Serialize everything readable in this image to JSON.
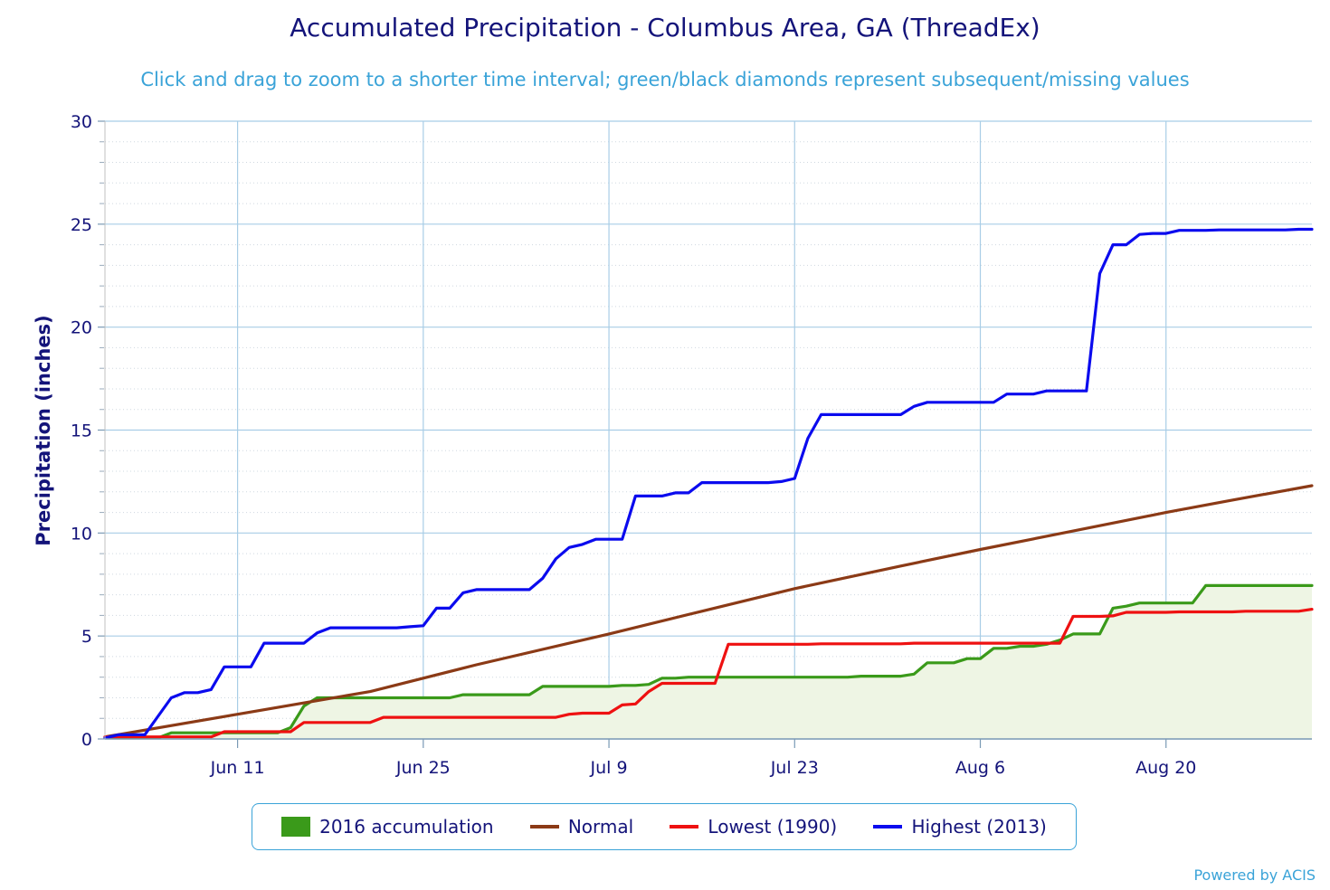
{
  "title": "Accumulated Precipitation - Columbus Area, GA (ThreadEx)",
  "subtitle": "Click and drag to zoom to a shorter time interval; green/black diamonds represent subsequent/missing values",
  "credit": "Powered by ACIS",
  "chart_data": {
    "type": "line",
    "title": "Accumulated Precipitation - Columbus Area, GA (ThreadEx)",
    "xlabel": "",
    "ylabel": "Precipitation (inches)",
    "x_start": "Jun 1",
    "x_end": "Aug 31",
    "xlim_days": [
      0,
      91
    ],
    "ylim": [
      0,
      30
    ],
    "yticks": [
      0,
      5,
      10,
      15,
      20,
      25,
      30
    ],
    "xticks": [
      {
        "label": "Jun 11",
        "day": 10
      },
      {
        "label": "Jun 25",
        "day": 24
      },
      {
        "label": "Jul 9",
        "day": 38
      },
      {
        "label": "Jul 23",
        "day": 52
      },
      {
        "label": "Aug 6",
        "day": 66
      },
      {
        "label": "Aug 20",
        "day": 80
      }
    ],
    "grid": true,
    "legend_position": "bottom-center",
    "series": [
      {
        "name": "2016 accumulation",
        "type": "area",
        "color": "#3a9a1a",
        "fill": "#eef5e4",
        "points": [
          [
            0,
            0.05
          ],
          [
            1,
            0.05
          ],
          [
            2,
            0.05
          ],
          [
            3,
            0.05
          ],
          [
            4,
            0.05
          ],
          [
            5,
            0.3
          ],
          [
            6,
            0.3
          ],
          [
            7,
            0.3
          ],
          [
            8,
            0.3
          ],
          [
            9,
            0.3
          ],
          [
            10,
            0.3
          ],
          [
            11,
            0.3
          ],
          [
            12,
            0.3
          ],
          [
            13,
            0.3
          ],
          [
            14,
            0.55
          ],
          [
            15,
            1.6
          ],
          [
            16,
            2.0
          ],
          [
            17,
            2.0
          ],
          [
            18,
            2.0
          ],
          [
            19,
            2.0
          ],
          [
            20,
            2.0
          ],
          [
            21,
            2.0
          ],
          [
            22,
            2.0
          ],
          [
            23,
            2.0
          ],
          [
            24,
            2.0
          ],
          [
            25,
            2.0
          ],
          [
            26,
            2.0
          ],
          [
            27,
            2.15
          ],
          [
            28,
            2.15
          ],
          [
            29,
            2.15
          ],
          [
            30,
            2.15
          ],
          [
            31,
            2.15
          ],
          [
            32,
            2.15
          ],
          [
            33,
            2.55
          ],
          [
            34,
            2.55
          ],
          [
            35,
            2.55
          ],
          [
            36,
            2.55
          ],
          [
            37,
            2.55
          ],
          [
            38,
            2.55
          ],
          [
            39,
            2.6
          ],
          [
            40,
            2.6
          ],
          [
            41,
            2.65
          ],
          [
            42,
            2.95
          ],
          [
            43,
            2.95
          ],
          [
            44,
            3.0
          ],
          [
            45,
            3.0
          ],
          [
            46,
            3.0
          ],
          [
            47,
            3.0
          ],
          [
            48,
            3.0
          ],
          [
            49,
            3.0
          ],
          [
            50,
            3.0
          ],
          [
            51,
            3.0
          ],
          [
            52,
            3.0
          ],
          [
            53,
            3.0
          ],
          [
            54,
            3.0
          ],
          [
            55,
            3.0
          ],
          [
            56,
            3.0
          ],
          [
            57,
            3.05
          ],
          [
            58,
            3.05
          ],
          [
            59,
            3.05
          ],
          [
            60,
            3.05
          ],
          [
            61,
            3.15
          ],
          [
            62,
            3.7
          ],
          [
            63,
            3.7
          ],
          [
            64,
            3.7
          ],
          [
            65,
            3.9
          ],
          [
            66,
            3.9
          ],
          [
            67,
            4.4
          ],
          [
            68,
            4.4
          ],
          [
            69,
            4.5
          ],
          [
            70,
            4.5
          ],
          [
            71,
            4.6
          ],
          [
            72,
            4.8
          ],
          [
            73,
            5.1
          ],
          [
            74,
            5.1
          ],
          [
            75,
            5.1
          ],
          [
            76,
            6.35
          ],
          [
            77,
            6.45
          ],
          [
            78,
            6.6
          ],
          [
            79,
            6.6
          ],
          [
            80,
            6.6
          ],
          [
            81,
            6.6
          ],
          [
            82,
            6.6
          ],
          [
            83,
            7.45
          ],
          [
            84,
            7.45
          ],
          [
            85,
            7.45
          ],
          [
            86,
            7.45
          ],
          [
            87,
            7.45
          ],
          [
            88,
            7.45
          ],
          [
            89,
            7.45
          ],
          [
            90,
            7.45
          ],
          [
            91,
            7.45
          ]
        ]
      },
      {
        "name": "Normal",
        "type": "line",
        "color": "#8b3a16",
        "points": [
          [
            0,
            0.1
          ],
          [
            10,
            1.2
          ],
          [
            20,
            2.3
          ],
          [
            28,
            3.6
          ],
          [
            38,
            5.1
          ],
          [
            45,
            6.2
          ],
          [
            52,
            7.3
          ],
          [
            60,
            8.4
          ],
          [
            66,
            9.2
          ],
          [
            73,
            10.1
          ],
          [
            80,
            11.0
          ],
          [
            85,
            11.6
          ],
          [
            91,
            12.3
          ]
        ]
      },
      {
        "name": "Lowest (1990)",
        "type": "line",
        "color": "#ee1111",
        "points": [
          [
            0,
            0.1
          ],
          [
            1,
            0.1
          ],
          [
            2,
            0.1
          ],
          [
            3,
            0.1
          ],
          [
            4,
            0.1
          ],
          [
            5,
            0.1
          ],
          [
            6,
            0.1
          ],
          [
            7,
            0.1
          ],
          [
            8,
            0.1
          ],
          [
            9,
            0.35
          ],
          [
            10,
            0.35
          ],
          [
            11,
            0.35
          ],
          [
            12,
            0.35
          ],
          [
            13,
            0.35
          ],
          [
            14,
            0.35
          ],
          [
            15,
            0.8
          ],
          [
            16,
            0.8
          ],
          [
            17,
            0.8
          ],
          [
            18,
            0.8
          ],
          [
            19,
            0.8
          ],
          [
            20,
            0.8
          ],
          [
            21,
            1.05
          ],
          [
            22,
            1.05
          ],
          [
            23,
            1.05
          ],
          [
            24,
            1.05
          ],
          [
            25,
            1.05
          ],
          [
            26,
            1.05
          ],
          [
            27,
            1.05
          ],
          [
            28,
            1.05
          ],
          [
            29,
            1.05
          ],
          [
            30,
            1.05
          ],
          [
            31,
            1.05
          ],
          [
            32,
            1.05
          ],
          [
            33,
            1.05
          ],
          [
            34,
            1.05
          ],
          [
            35,
            1.2
          ],
          [
            36,
            1.25
          ],
          [
            37,
            1.25
          ],
          [
            38,
            1.25
          ],
          [
            39,
            1.65
          ],
          [
            40,
            1.7
          ],
          [
            41,
            2.3
          ],
          [
            42,
            2.7
          ],
          [
            43,
            2.7
          ],
          [
            44,
            2.7
          ],
          [
            45,
            2.7
          ],
          [
            46,
            2.7
          ],
          [
            47,
            4.6
          ],
          [
            48,
            4.6
          ],
          [
            49,
            4.6
          ],
          [
            50,
            4.6
          ],
          [
            51,
            4.6
          ],
          [
            52,
            4.6
          ],
          [
            53,
            4.6
          ],
          [
            54,
            4.62
          ],
          [
            55,
            4.62
          ],
          [
            56,
            4.62
          ],
          [
            57,
            4.62
          ],
          [
            58,
            4.62
          ],
          [
            59,
            4.62
          ],
          [
            60,
            4.62
          ],
          [
            61,
            4.65
          ],
          [
            62,
            4.65
          ],
          [
            63,
            4.65
          ],
          [
            64,
            4.65
          ],
          [
            65,
            4.65
          ],
          [
            66,
            4.65
          ],
          [
            67,
            4.65
          ],
          [
            68,
            4.65
          ],
          [
            69,
            4.65
          ],
          [
            70,
            4.65
          ],
          [
            71,
            4.65
          ],
          [
            72,
            4.65
          ],
          [
            73,
            5.95
          ],
          [
            74,
            5.95
          ],
          [
            75,
            5.95
          ],
          [
            76,
            5.98
          ],
          [
            77,
            6.15
          ],
          [
            78,
            6.15
          ],
          [
            79,
            6.15
          ],
          [
            80,
            6.15
          ],
          [
            81,
            6.17
          ],
          [
            82,
            6.17
          ],
          [
            83,
            6.17
          ],
          [
            84,
            6.17
          ],
          [
            85,
            6.17
          ],
          [
            86,
            6.2
          ],
          [
            87,
            6.2
          ],
          [
            88,
            6.2
          ],
          [
            89,
            6.2
          ],
          [
            90,
            6.2
          ],
          [
            91,
            6.3
          ]
        ]
      },
      {
        "name": "Highest (2013)",
        "type": "line",
        "color": "#0b0bee",
        "points": [
          [
            0,
            0.05
          ],
          [
            1,
            0.2
          ],
          [
            2,
            0.2
          ],
          [
            3,
            0.2
          ],
          [
            4,
            1.1
          ],
          [
            5,
            2.0
          ],
          [
            6,
            2.25
          ],
          [
            7,
            2.25
          ],
          [
            8,
            2.4
          ],
          [
            9,
            3.5
          ],
          [
            10,
            3.5
          ],
          [
            11,
            3.5
          ],
          [
            12,
            4.65
          ],
          [
            13,
            4.65
          ],
          [
            14,
            4.65
          ],
          [
            15,
            4.65
          ],
          [
            16,
            5.15
          ],
          [
            17,
            5.4
          ],
          [
            18,
            5.4
          ],
          [
            19,
            5.4
          ],
          [
            20,
            5.4
          ],
          [
            21,
            5.4
          ],
          [
            22,
            5.4
          ],
          [
            23,
            5.45
          ],
          [
            24,
            5.5
          ],
          [
            25,
            6.35
          ],
          [
            26,
            6.35
          ],
          [
            27,
            7.1
          ],
          [
            28,
            7.25
          ],
          [
            29,
            7.25
          ],
          [
            30,
            7.25
          ],
          [
            31,
            7.25
          ],
          [
            32,
            7.25
          ],
          [
            33,
            7.8
          ],
          [
            34,
            8.75
          ],
          [
            35,
            9.3
          ],
          [
            36,
            9.45
          ],
          [
            37,
            9.7
          ],
          [
            38,
            9.7
          ],
          [
            39,
            9.7
          ],
          [
            40,
            11.8
          ],
          [
            41,
            11.8
          ],
          [
            42,
            11.8
          ],
          [
            43,
            11.95
          ],
          [
            44,
            11.95
          ],
          [
            45,
            12.45
          ],
          [
            46,
            12.45
          ],
          [
            47,
            12.45
          ],
          [
            48,
            12.45
          ],
          [
            49,
            12.45
          ],
          [
            50,
            12.45
          ],
          [
            51,
            12.5
          ],
          [
            52,
            12.65
          ],
          [
            53,
            14.6
          ],
          [
            54,
            15.75
          ],
          [
            55,
            15.75
          ],
          [
            56,
            15.75
          ],
          [
            57,
            15.75
          ],
          [
            58,
            15.75
          ],
          [
            59,
            15.75
          ],
          [
            60,
            15.75
          ],
          [
            61,
            16.15
          ],
          [
            62,
            16.35
          ],
          [
            63,
            16.35
          ],
          [
            64,
            16.35
          ],
          [
            65,
            16.35
          ],
          [
            66,
            16.35
          ],
          [
            67,
            16.35
          ],
          [
            68,
            16.75
          ],
          [
            69,
            16.75
          ],
          [
            70,
            16.75
          ],
          [
            71,
            16.9
          ],
          [
            72,
            16.9
          ],
          [
            73,
            16.9
          ],
          [
            74,
            16.9
          ],
          [
            75,
            22.6
          ],
          [
            76,
            24.0
          ],
          [
            77,
            24.0
          ],
          [
            78,
            24.5
          ],
          [
            79,
            24.55
          ],
          [
            80,
            24.55
          ],
          [
            81,
            24.7
          ],
          [
            82,
            24.7
          ],
          [
            83,
            24.7
          ],
          [
            84,
            24.72
          ],
          [
            85,
            24.72
          ],
          [
            86,
            24.72
          ],
          [
            87,
            24.72
          ],
          [
            88,
            24.72
          ],
          [
            89,
            24.72
          ],
          [
            90,
            24.75
          ],
          [
            91,
            24.75
          ]
        ]
      }
    ]
  }
}
